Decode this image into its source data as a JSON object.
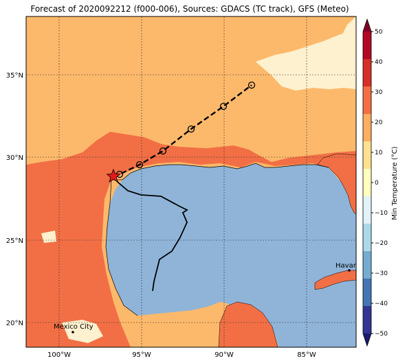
{
  "map": {
    "title": "Forecast of 2020092212 (f000-006), Sources: GDACS (TC track), GFS (Meteo)",
    "lon_ticks": [
      "100°W",
      "95°W",
      "90°W",
      "85°W"
    ],
    "lat_ticks": [
      "35°N",
      "30°N",
      "25°N",
      "20°N"
    ],
    "cities": [
      {
        "name": "Mexico City"
      },
      {
        "name": "Havana"
      }
    ],
    "colors": {
      "ocean": "#8fb4d8",
      "land_warm": "#fdb96b",
      "land_hot": "#f26f45",
      "land_mild": "#fef1cf",
      "track": "#000000",
      "current_position": "#e31a1c"
    }
  },
  "colorbar": {
    "label": "Min Temperature (°C)",
    "ticks": [
      "50",
      "40",
      "30",
      "20",
      "10",
      "0",
      "−10",
      "−20",
      "−30",
      "−40",
      "−50"
    ],
    "colors": [
      "#800026",
      "#b20826",
      "#d62f27",
      "#f46d43",
      "#fdae61",
      "#fee090",
      "#ffffbf",
      "#e0f3f8",
      "#abd9e9",
      "#74add1",
      "#4575b4",
      "#313695",
      "#1a1a6e"
    ]
  }
}
